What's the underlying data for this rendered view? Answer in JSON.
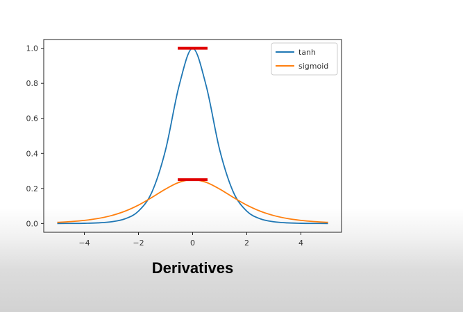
{
  "caption": "Derivatives",
  "chart_data": {
    "type": "line",
    "title": "",
    "xlabel": "",
    "ylabel": "",
    "xlim": [
      -5.5,
      5.5
    ],
    "ylim": [
      -0.05,
      1.05
    ],
    "xticks": [
      -4,
      -2,
      0,
      2,
      4
    ],
    "xtick_labels": [
      "−4",
      "−2",
      "0",
      "2",
      "4"
    ],
    "yticks": [
      0.0,
      0.2,
      0.4,
      0.6,
      0.8,
      1.0
    ],
    "ytick_labels": [
      "0.0",
      "0.2",
      "0.4",
      "0.6",
      "0.8",
      "1.0"
    ],
    "grid": false,
    "legend_position": "top-right",
    "series": [
      {
        "name": "tanh",
        "color": "#1f77b4",
        "x": [
          -5,
          -4.5,
          -4,
          -3.5,
          -3,
          -2.5,
          -2,
          -1.5,
          -1,
          -0.5,
          0,
          0.5,
          1,
          1.5,
          2,
          2.5,
          3,
          3.5,
          4,
          4.5,
          5
        ],
        "y": [
          0.0002,
          0.0005,
          0.0013,
          0.0036,
          0.0099,
          0.0266,
          0.0707,
          0.1807,
          0.42,
          0.7864,
          1.0,
          0.7864,
          0.42,
          0.1807,
          0.0707,
          0.0266,
          0.0099,
          0.0036,
          0.0013,
          0.0005,
          0.0002
        ]
      },
      {
        "name": "sigmoid",
        "color": "#ff7f0e",
        "x": [
          -5,
          -4.5,
          -4,
          -3.5,
          -3,
          -2.5,
          -2,
          -1.5,
          -1,
          -0.5,
          0,
          0.5,
          1,
          1.5,
          2,
          2.5,
          3,
          3.5,
          4,
          4.5,
          5
        ],
        "y": [
          0.0066,
          0.0109,
          0.0177,
          0.0285,
          0.0452,
          0.0701,
          0.105,
          0.1491,
          0.1966,
          0.235,
          0.25,
          0.235,
          0.1966,
          0.1491,
          0.105,
          0.0701,
          0.0452,
          0.0285,
          0.0177,
          0.0109,
          0.0066
        ]
      }
    ],
    "annotations": [
      {
        "type": "hline-marker",
        "color": "#e00000",
        "x_from": -0.55,
        "x_to": 0.55,
        "y": 1.0
      },
      {
        "type": "hline-marker",
        "color": "#e00000",
        "x_from": -0.55,
        "x_to": 0.55,
        "y": 0.25
      }
    ]
  }
}
